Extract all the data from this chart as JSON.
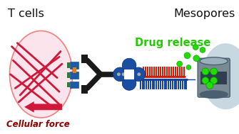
{
  "title_left": "T cells",
  "title_right": "Mesopores",
  "label_drug": "Drug release",
  "label_force": "Cellular force",
  "bg_color": "#ffffff",
  "cell_bg": "#fce4ec",
  "cell_outline": "#f08080",
  "actin_color": "#d0183a",
  "antibody_color": "#1a1a1a",
  "receptor_blue": "#1a5ca8",
  "receptor_green": "#2e7d32",
  "receptor_orange": "#e08020",
  "flower_color": "#1a4ea0",
  "brush_red": "#cc1800",
  "brush_blue": "#1040a0",
  "silica_gray": "#7a8a95",
  "silica_light": "#9ab0ba",
  "silica_dark": "#4a6070",
  "drug_green": "#22dd00",
  "drug_release_color": "#22cc00",
  "mesopore_bg": "#c8d8e0",
  "force_color": "#8b0000",
  "figsize": [
    3.35,
    1.89
  ],
  "dpi": 100
}
